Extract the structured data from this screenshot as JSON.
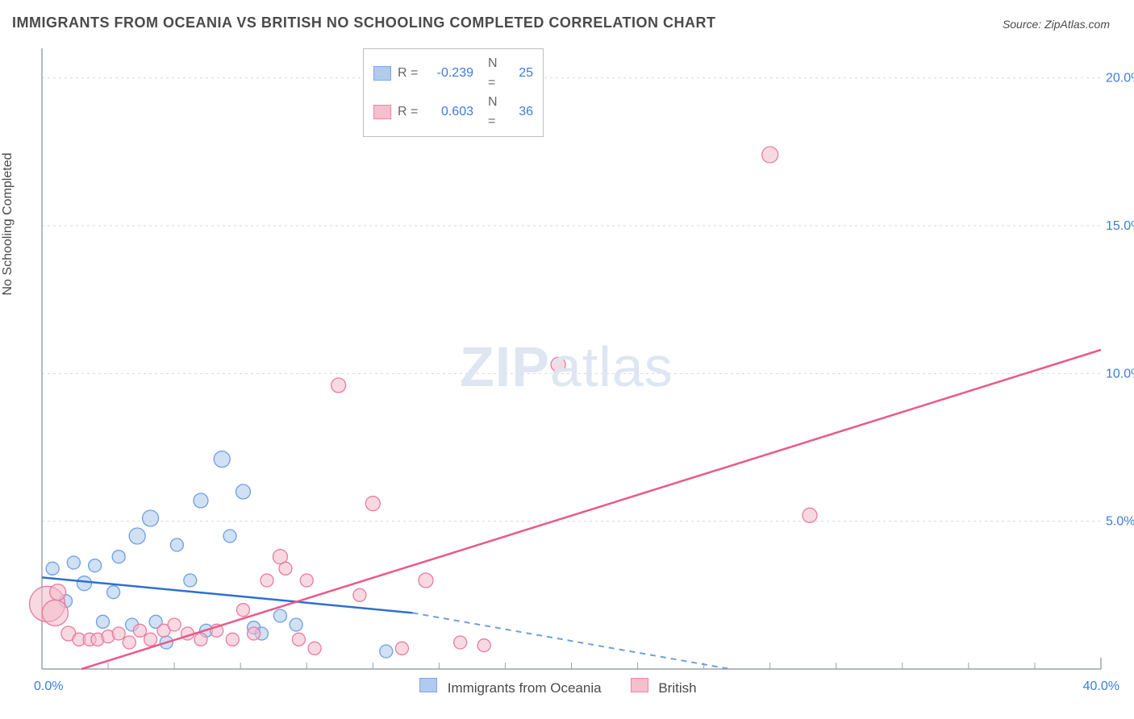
{
  "title": "IMMIGRANTS FROM OCEANIA VS BRITISH NO SCHOOLING COMPLETED CORRELATION CHART",
  "source_prefix": "Source: ",
  "source_name": "ZipAtlas.com",
  "ylabel": "No Schooling Completed",
  "watermark_bold": "ZIP",
  "watermark_light": "atlas",
  "chart": {
    "type": "scatter",
    "background_color": "#ffffff",
    "grid_color": "#d7d7d7",
    "grid_dash": "3,4",
    "axis_color": "#9da3a8",
    "plot_border_left": true,
    "plot_border_bottom": true,
    "xlim": [
      0,
      40
    ],
    "ylim": [
      0,
      21
    ],
    "xtick_major": [
      0,
      40
    ],
    "xtick_minor_step": 2.5,
    "ytick_labels": [
      "5.0%",
      "10.0%",
      "15.0%",
      "20.0%"
    ],
    "ytick_values": [
      5,
      10,
      15,
      20
    ],
    "xtick_labels": [
      "0.0%",
      "40.0%"
    ],
    "tick_label_color": "#3b7dd8",
    "tick_label_fontsize": 16,
    "series": [
      {
        "id": "oceania",
        "label": "Immigrants from Oceania",
        "fill": "#a9c6ed",
        "fill_opacity": 0.55,
        "stroke": "#6ea0e0",
        "trend_color": "#2f6fd0",
        "trend_dash_color": "#6ea0e0",
        "R": "-0.239",
        "N": "25",
        "points": [
          {
            "x": 0.4,
            "y": 3.4,
            "r": 8
          },
          {
            "x": 0.9,
            "y": 2.3,
            "r": 8
          },
          {
            "x": 1.2,
            "y": 3.6,
            "r": 8
          },
          {
            "x": 1.6,
            "y": 2.9,
            "r": 9
          },
          {
            "x": 2.0,
            "y": 3.5,
            "r": 8
          },
          {
            "x": 2.3,
            "y": 1.6,
            "r": 8
          },
          {
            "x": 2.7,
            "y": 2.6,
            "r": 8
          },
          {
            "x": 2.9,
            "y": 3.8,
            "r": 8
          },
          {
            "x": 3.4,
            "y": 1.5,
            "r": 8
          },
          {
            "x": 3.6,
            "y": 4.5,
            "r": 10
          },
          {
            "x": 4.1,
            "y": 5.1,
            "r": 10
          },
          {
            "x": 4.3,
            "y": 1.6,
            "r": 8
          },
          {
            "x": 4.7,
            "y": 0.9,
            "r": 8
          },
          {
            "x": 5.1,
            "y": 4.2,
            "r": 8
          },
          {
            "x": 5.6,
            "y": 3.0,
            "r": 8
          },
          {
            "x": 6.0,
            "y": 5.7,
            "r": 9
          },
          {
            "x": 6.2,
            "y": 1.3,
            "r": 8
          },
          {
            "x": 6.8,
            "y": 7.1,
            "r": 10
          },
          {
            "x": 7.1,
            "y": 4.5,
            "r": 8
          },
          {
            "x": 7.6,
            "y": 6.0,
            "r": 9
          },
          {
            "x": 8.0,
            "y": 1.4,
            "r": 8
          },
          {
            "x": 8.3,
            "y": 1.2,
            "r": 8
          },
          {
            "x": 9.0,
            "y": 1.8,
            "r": 8
          },
          {
            "x": 9.6,
            "y": 1.5,
            "r": 8
          },
          {
            "x": 13.0,
            "y": 0.6,
            "r": 8
          }
        ],
        "trend": {
          "x1": 0,
          "y1": 3.1,
          "x2": 14,
          "y2": 1.9,
          "solid_until_x": 14,
          "dash_to_x": 26,
          "dash_to_y": 0
        }
      },
      {
        "id": "british",
        "label": "British",
        "fill": "#f4b9c9",
        "fill_opacity": 0.55,
        "stroke": "#e87ba0",
        "trend_color": "#e85a8a",
        "R": "0.603",
        "N": "36",
        "points": [
          {
            "x": 0.2,
            "y": 2.2,
            "r": 22
          },
          {
            "x": 0.5,
            "y": 1.9,
            "r": 16
          },
          {
            "x": 0.6,
            "y": 2.6,
            "r": 10
          },
          {
            "x": 1.0,
            "y": 1.2,
            "r": 9
          },
          {
            "x": 1.4,
            "y": 1.0,
            "r": 8
          },
          {
            "x": 1.8,
            "y": 1.0,
            "r": 8
          },
          {
            "x": 2.1,
            "y": 1.0,
            "r": 8
          },
          {
            "x": 2.5,
            "y": 1.1,
            "r": 8
          },
          {
            "x": 2.9,
            "y": 1.2,
            "r": 8
          },
          {
            "x": 3.3,
            "y": 0.9,
            "r": 8
          },
          {
            "x": 3.7,
            "y": 1.3,
            "r": 8
          },
          {
            "x": 4.1,
            "y": 1.0,
            "r": 8
          },
          {
            "x": 4.6,
            "y": 1.3,
            "r": 8
          },
          {
            "x": 5.0,
            "y": 1.5,
            "r": 8
          },
          {
            "x": 5.5,
            "y": 1.2,
            "r": 8
          },
          {
            "x": 6.0,
            "y": 1.0,
            "r": 8
          },
          {
            "x": 6.6,
            "y": 1.3,
            "r": 8
          },
          {
            "x": 7.2,
            "y": 1.0,
            "r": 8
          },
          {
            "x": 7.6,
            "y": 2.0,
            "r": 8
          },
          {
            "x": 8.0,
            "y": 1.2,
            "r": 8
          },
          {
            "x": 8.5,
            "y": 3.0,
            "r": 8
          },
          {
            "x": 9.0,
            "y": 3.8,
            "r": 9
          },
          {
            "x": 9.2,
            "y": 3.4,
            "r": 8
          },
          {
            "x": 9.7,
            "y": 1.0,
            "r": 8
          },
          {
            "x": 10.0,
            "y": 3.0,
            "r": 8
          },
          {
            "x": 10.3,
            "y": 0.7,
            "r": 8
          },
          {
            "x": 11.2,
            "y": 9.6,
            "r": 9
          },
          {
            "x": 12.0,
            "y": 2.5,
            "r": 8
          },
          {
            "x": 12.5,
            "y": 5.6,
            "r": 9
          },
          {
            "x": 13.6,
            "y": 0.7,
            "r": 8
          },
          {
            "x": 14.5,
            "y": 3.0,
            "r": 9
          },
          {
            "x": 15.8,
            "y": 0.9,
            "r": 8
          },
          {
            "x": 16.7,
            "y": 0.8,
            "r": 8
          },
          {
            "x": 19.5,
            "y": 10.3,
            "r": 9
          },
          {
            "x": 27.5,
            "y": 17.4,
            "r": 10
          },
          {
            "x": 29.0,
            "y": 5.2,
            "r": 9
          }
        ],
        "trend": {
          "x1": 1.5,
          "y1": 0,
          "x2": 40,
          "y2": 10.8
        }
      }
    ]
  },
  "legend_label_R": "R =",
  "legend_label_N": "N =",
  "legend_value_color": "#3b7dd8"
}
